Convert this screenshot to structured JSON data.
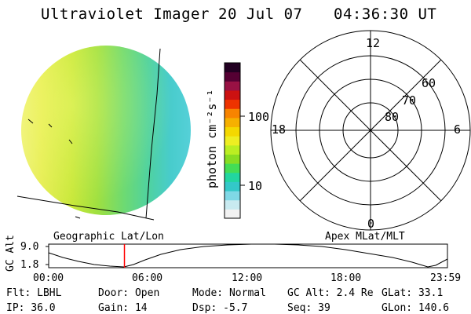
{
  "header": {
    "title": "Ultraviolet Imager",
    "date": "20 Jul 07",
    "time": "04:36:30 UT"
  },
  "colorbar": {
    "unit_label": "photon cm⁻²s⁻¹",
    "ticks": [
      "100",
      "10"
    ],
    "colors": [
      "#f2f2f2",
      "#c8eaf0",
      "#7fd8e6",
      "#33c8c8",
      "#22d6a0",
      "#44dd55",
      "#88dd22",
      "#bbee22",
      "#eeee22",
      "#f4d800",
      "#f6b000",
      "#f88400",
      "#ee3300",
      "#cc1111",
      "#991144",
      "#550033",
      "#220022"
    ]
  },
  "geo_panel": {
    "label": "Geographic Lat/Lon"
  },
  "polar_panel": {
    "label": "Apex MLat/MLT",
    "mlt_labels": {
      "top": "12",
      "bottom": "0",
      "left": "18",
      "right": "6"
    },
    "lat_labels": [
      "60",
      "70",
      "80"
    ]
  },
  "timeline": {
    "ylabel": "GC Alt",
    "y_ticks": [
      "9.0",
      "1.8"
    ],
    "x_ticks": [
      "00:00",
      "06:00",
      "12:00",
      "18:00",
      "23:59"
    ],
    "marker_color": "#ff0000",
    "marker_fraction": 0.19
  },
  "status": {
    "row1": [
      {
        "label": "Flt:",
        "value": "LBHL"
      },
      {
        "label": "Door:",
        "value": "Open"
      },
      {
        "label": "Mode:",
        "value": "Normal"
      },
      {
        "label": "GC Alt:",
        "value": "2.4 Re"
      },
      {
        "label": "GLat:",
        "value": "33.1"
      }
    ],
    "row2": [
      {
        "label": "IP:",
        "value": "36.0"
      },
      {
        "label": "Gain:",
        "value": "14"
      },
      {
        "label": "Dsp:",
        "value": "-5.7"
      },
      {
        "label": "Seq:",
        "value": "39"
      },
      {
        "label": "GLon:",
        "value": "140.6"
      }
    ]
  }
}
